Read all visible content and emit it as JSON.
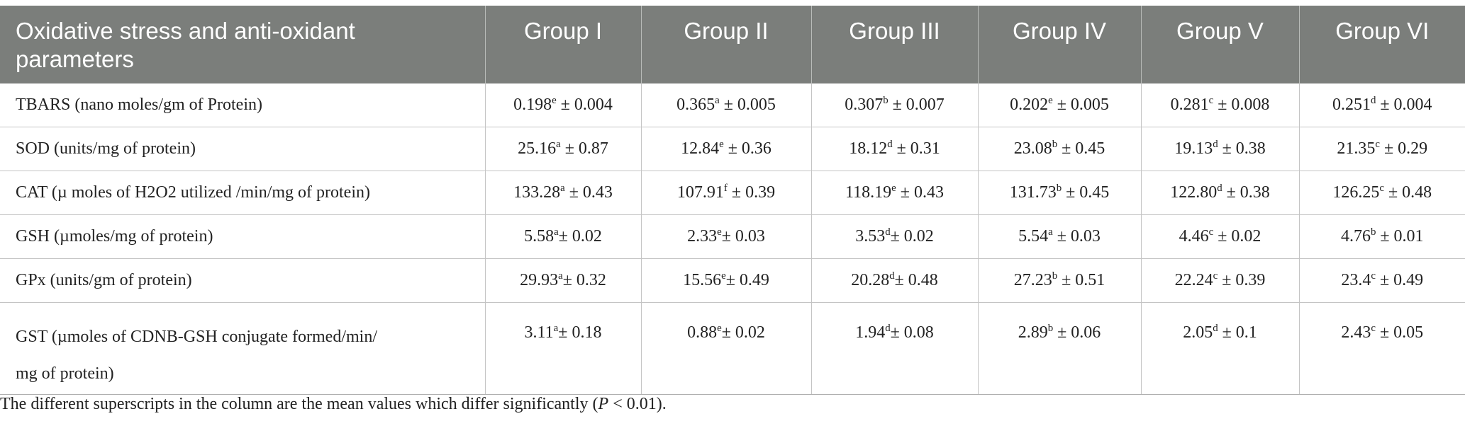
{
  "table": {
    "headers": [
      "Oxidative stress and anti-oxidant parameters",
      "Group I",
      "Group II",
      "Group III",
      "Group IV",
      "Group V",
      "Group VI"
    ],
    "rows": [
      {
        "parameter": "TBARS (nano moles/gm of Protein)",
        "cells": [
          {
            "mean": "0.198",
            "sup": "e",
            "sep": " ± ",
            "sd": "0.004"
          },
          {
            "mean": "0.365",
            "sup": "a",
            "sep": " ± ",
            "sd": "0.005"
          },
          {
            "mean": "0.307",
            "sup": "b",
            "sep": " ± ",
            "sd": "0.007"
          },
          {
            "mean": "0.202",
            "sup": "e",
            "sep": " ± ",
            "sd": "0.005"
          },
          {
            "mean": "0.281",
            "sup": "c",
            "sep": " ± ",
            "sd": "0.008"
          },
          {
            "mean": "0.251",
            "sup": "d",
            "sep": " ± ",
            "sd": "0.004"
          }
        ]
      },
      {
        "parameter": "SOD (units/mg of protein)",
        "cells": [
          {
            "mean": "25.16",
            "sup": "a",
            "sep": " ± ",
            "sd": "0.87"
          },
          {
            "mean": "12.84",
            "sup": "e",
            "sep": " ± ",
            "sd": "0.36"
          },
          {
            "mean": "18.12",
            "sup": "d",
            "sep": " ± ",
            "sd": "0.31"
          },
          {
            "mean": "23.08",
            "sup": "b",
            "sep": " ± ",
            "sd": "0.45"
          },
          {
            "mean": "19.13",
            "sup": "d",
            "sep": " ± ",
            "sd": "0.38"
          },
          {
            "mean": "21.35",
            "sup": "c",
            "sep": " ± ",
            "sd": "0.29"
          }
        ]
      },
      {
        "parameter": "CAT (µ moles of H2O2 utilized /min/mg of protein)",
        "cells": [
          {
            "mean": "133.28",
            "sup": "a",
            "sep": " ± ",
            "sd": "0.43"
          },
          {
            "mean": "107.91",
            "sup": "f",
            "sep": " ± ",
            "sd": "0.39"
          },
          {
            "mean": "118.19",
            "sup": "e",
            "sep": " ± ",
            "sd": "0.43"
          },
          {
            "mean": "131.73",
            "sup": "b",
            "sep": " ± ",
            "sd": "0.45"
          },
          {
            "mean": "122.80",
            "sup": "d",
            "sep": " ± ",
            "sd": "0.38"
          },
          {
            "mean": "126.25",
            "sup": "c",
            "sep": " ± ",
            "sd": "0.48"
          }
        ]
      },
      {
        "parameter": "GSH (µmoles/mg of protein)",
        "cells": [
          {
            "mean": "5.58",
            "sup": "a",
            "sep": "± ",
            "sd": "0.02"
          },
          {
            "mean": "2.33",
            "sup": "e",
            "sep": "± ",
            "sd": "0.03"
          },
          {
            "mean": "3.53",
            "sup": "d",
            "sep": "± ",
            "sd": "0.02"
          },
          {
            "mean": "5.54",
            "sup": "a",
            "sep": " ± ",
            "sd": "0.03"
          },
          {
            "mean": "4.46",
            "sup": "c",
            "sep": " ± ",
            "sd": "0.02"
          },
          {
            "mean": "4.76",
            "sup": "b",
            "sep": " ± ",
            "sd": "0.01"
          }
        ]
      },
      {
        "parameter": "GPx (units/gm of protein)",
        "cells": [
          {
            "mean": "29.93",
            "sup": "a",
            "sep": "± ",
            "sd": "0.32"
          },
          {
            "mean": "15.56",
            "sup": "e",
            "sep": "± ",
            "sd": "0.49"
          },
          {
            "mean": "20.28",
            "sup": "d",
            "sep": "± ",
            "sd": "0.48"
          },
          {
            "mean": "27.23",
            "sup": "b",
            "sep": " ± ",
            "sd": "0.51"
          },
          {
            "mean": "22.24",
            "sup": "c",
            "sep": " ± ",
            "sd": "0.39"
          },
          {
            "mean": "23.4",
            "sup": "c",
            "sep": " ± ",
            "sd": "0.49"
          }
        ]
      },
      {
        "parameter_line1": "GST (µmoles of CDNB-GSH conjugate formed/min/",
        "parameter_line2": "mg of protein)",
        "cells": [
          {
            "mean": "3.11",
            "sup": "a",
            "sep": "± ",
            "sd": "0.18"
          },
          {
            "mean": "0.88",
            "sup": "e",
            "sep": "± ",
            "sd": "0.02"
          },
          {
            "mean": "1.94",
            "sup": "d",
            "sep": "± ",
            "sd": "0.08"
          },
          {
            "mean": "2.89",
            "sup": "b",
            "sep": " ± ",
            "sd": "0.06"
          },
          {
            "mean": "2.05",
            "sup": "d",
            "sep": " ± ",
            "sd": "0.1"
          },
          {
            "mean": "2.43",
            "sup": "c",
            "sep": " ± ",
            "sd": "0.05"
          }
        ]
      }
    ]
  },
  "footnote": {
    "before": "The different superscripts in the column are the mean values which differ significantly (",
    "italic": "P",
    "after": " < 0.01)."
  },
  "colors": {
    "header_background": "#7b7e7b",
    "header_text": "#ffffff",
    "grid_line": "#c4c4c4"
  }
}
